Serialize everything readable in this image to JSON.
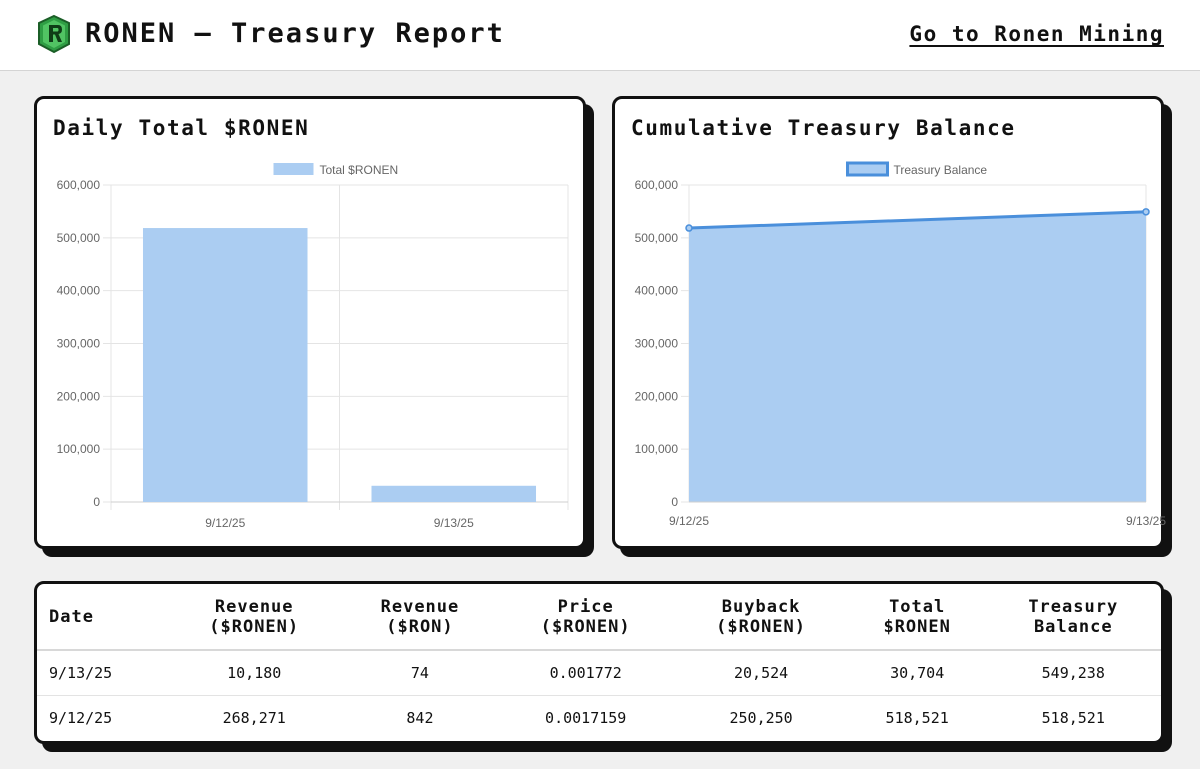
{
  "header": {
    "title": "RONEN — Treasury Report",
    "nav_link": "Go to Ronen Mining",
    "logo_letter": "R"
  },
  "colors": {
    "bar_fill": "#abcdf2",
    "line_stroke": "#4a8fdb",
    "area_fill": "#abcdf2",
    "logo_green": "#2f9e44"
  },
  "charts": [
    {
      "card_title": "Daily Total $RONEN",
      "chart_data": {
        "type": "bar",
        "categories": [
          "9/12/25",
          "9/13/25"
        ],
        "series": [
          {
            "name": "Total $RONEN",
            "values": [
              518521,
              30704
            ]
          }
        ],
        "ylim": [
          0,
          600000
        ],
        "yticks": [
          "0",
          "100,000",
          "200,000",
          "300,000",
          "400,000",
          "500,000",
          "600,000"
        ],
        "grid": true,
        "legend": "top-center"
      }
    },
    {
      "card_title": "Cumulative Treasury Balance",
      "chart_data": {
        "type": "area",
        "categories": [
          "9/12/25",
          "9/13/25"
        ],
        "series": [
          {
            "name": "Treasury Balance",
            "values": [
              518521,
              549238
            ]
          }
        ],
        "ylim": [
          0,
          600000
        ],
        "yticks": [
          "0",
          "100,000",
          "200,000",
          "300,000",
          "400,000",
          "500,000",
          "600,000"
        ],
        "grid": true,
        "legend": "top-center"
      }
    }
  ],
  "table": {
    "headers": [
      [
        "Date"
      ],
      [
        "Revenue",
        "($RONEN)"
      ],
      [
        "Revenue",
        "($RON)"
      ],
      [
        "Price",
        "($RONEN)"
      ],
      [
        "Buyback",
        "($RONEN)"
      ],
      [
        "Total",
        "$RONEN"
      ],
      [
        "Treasury",
        "Balance"
      ]
    ],
    "rows": [
      [
        "9/13/25",
        "10,180",
        "74",
        "0.001772",
        "20,524",
        "30,704",
        "549,238"
      ],
      [
        "9/12/25",
        "268,271",
        "842",
        "0.0017159",
        "250,250",
        "518,521",
        "518,521"
      ]
    ]
  }
}
